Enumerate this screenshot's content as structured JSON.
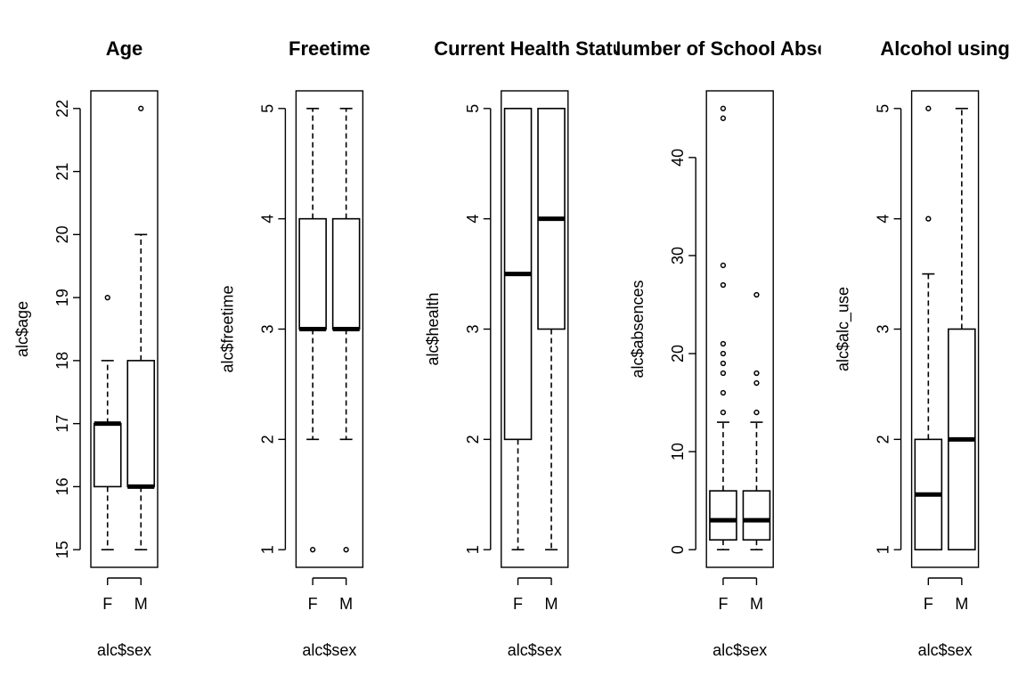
{
  "chart_data": [
    {
      "type": "boxplot",
      "title": "Age",
      "xlabel": "alc$sex",
      "ylabel": "alc$age",
      "categories": [
        "F",
        "M"
      ],
      "yticks": [
        15,
        16,
        17,
        18,
        19,
        20,
        21,
        22
      ],
      "ylim": [
        14.72,
        22.28
      ],
      "boxes": [
        {
          "min": 15,
          "q1": 16,
          "median": 17,
          "q3": 17,
          "max": 18,
          "outliers": [
            19
          ]
        },
        {
          "min": 15,
          "q1": 16,
          "median": 16,
          "q3": 18,
          "max": 20,
          "outliers": [
            22
          ]
        }
      ]
    },
    {
      "type": "boxplot",
      "title": "Freetime",
      "xlabel": "alc$sex",
      "ylabel": "alc$freetime",
      "categories": [
        "F",
        "M"
      ],
      "yticks": [
        1,
        2,
        3,
        4,
        5
      ],
      "ylim": [
        0.84,
        5.16
      ],
      "boxes": [
        {
          "min": 2,
          "q1": 3,
          "median": 3,
          "q3": 4,
          "max": 5,
          "outliers": [
            1
          ]
        },
        {
          "min": 2,
          "q1": 3,
          "median": 3,
          "q3": 4,
          "max": 5,
          "outliers": [
            1
          ]
        }
      ]
    },
    {
      "type": "boxplot",
      "title": "Current Health Status",
      "xlabel": "alc$sex",
      "ylabel": "alc$health",
      "categories": [
        "F",
        "M"
      ],
      "yticks": [
        1,
        2,
        3,
        4,
        5
      ],
      "ylim": [
        0.84,
        5.16
      ],
      "boxes": [
        {
          "min": 1,
          "q1": 2,
          "median": 3.5,
          "q3": 5,
          "max": 5,
          "outliers": []
        },
        {
          "min": 1,
          "q1": 3,
          "median": 4,
          "q3": 5,
          "max": 5,
          "outliers": []
        }
      ]
    },
    {
      "type": "boxplot",
      "title": "Number of School Absences",
      "xlabel": "alc$sex",
      "ylabel": "alc$absences",
      "categories": [
        "F",
        "M"
      ],
      "yticks": [
        0,
        10,
        20,
        30,
        40
      ],
      "ylim": [
        -1.8,
        46.8
      ],
      "boxes": [
        {
          "min": 0,
          "q1": 1,
          "median": 3,
          "q3": 6,
          "max": 13,
          "outliers": [
            14,
            16,
            18,
            19,
            20,
            21,
            27,
            29,
            44,
            45
          ]
        },
        {
          "min": 0,
          "q1": 1,
          "median": 3,
          "q3": 6,
          "max": 13,
          "outliers": [
            14,
            17,
            18,
            26
          ]
        }
      ]
    },
    {
      "type": "boxplot",
      "title": "Alcohol using",
      "xlabel": "alc$sex",
      "ylabel": "alc$alc_use",
      "categories": [
        "F",
        "M"
      ],
      "yticks": [
        1,
        2,
        3,
        4,
        5
      ],
      "ylim": [
        0.84,
        5.16
      ],
      "boxes": [
        {
          "min": 1,
          "q1": 1,
          "median": 1.5,
          "q3": 2,
          "max": 3.5,
          "outliers": [
            4,
            5
          ]
        },
        {
          "min": 1,
          "q1": 1,
          "median": 2,
          "q3": 3,
          "max": 5,
          "outliers": []
        }
      ]
    }
  ]
}
